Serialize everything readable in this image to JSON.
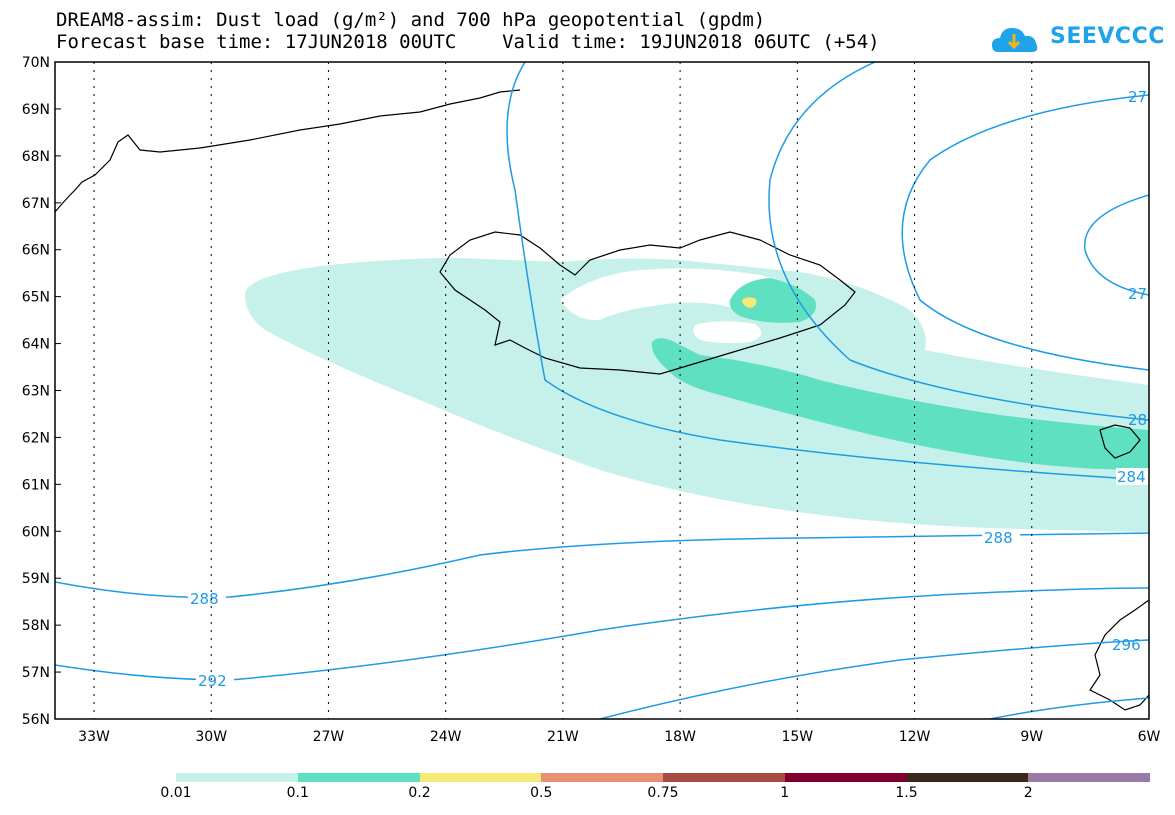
{
  "header": {
    "title_line1": "DREAM8-assim: Dust load (g/m²) and 700 hPa geopotential (gpdm)",
    "title_line2": "Forecast base time: 17JUN2018 00UTC    Valid time: 19JUN2018 06UTC (+54)",
    "logo_text": "SEEVCCC",
    "logo_icon": "cloud-download-icon"
  },
  "map": {
    "lat_labels": [
      "70N",
      "69N",
      "68N",
      "67N",
      "66N",
      "65N",
      "64N",
      "63N",
      "62N",
      "61N",
      "60N",
      "59N",
      "58N",
      "57N",
      "56N"
    ],
    "lon_labels": [
      "33W",
      "30W",
      "27W",
      "24W",
      "21W",
      "18W",
      "15W",
      "12W",
      "9W",
      "6W"
    ],
    "contour_labels": {
      "c288_left": "288",
      "c292": "292",
      "c288_right": "288",
      "c284": "284",
      "c28_right": "28",
      "c27_top": "27",
      "c27_mid": "27",
      "c296": "296"
    },
    "shading_colors": {
      "light": "#c5f1ea",
      "medium": "#5fe0c0",
      "yellow": "#f5ea78",
      "contour": "#1e9be6"
    }
  },
  "colorbar": {
    "colors": [
      "#c5f1ea",
      "#5fe0c0",
      "#f5ea78",
      "#e89070",
      "#a84a42",
      "#800030",
      "#3a2818",
      "#9a78a8"
    ],
    "labels": [
      "0.01",
      "0.1",
      "0.2",
      "0.5",
      "0.75",
      "1",
      "1.5",
      "2"
    ]
  }
}
